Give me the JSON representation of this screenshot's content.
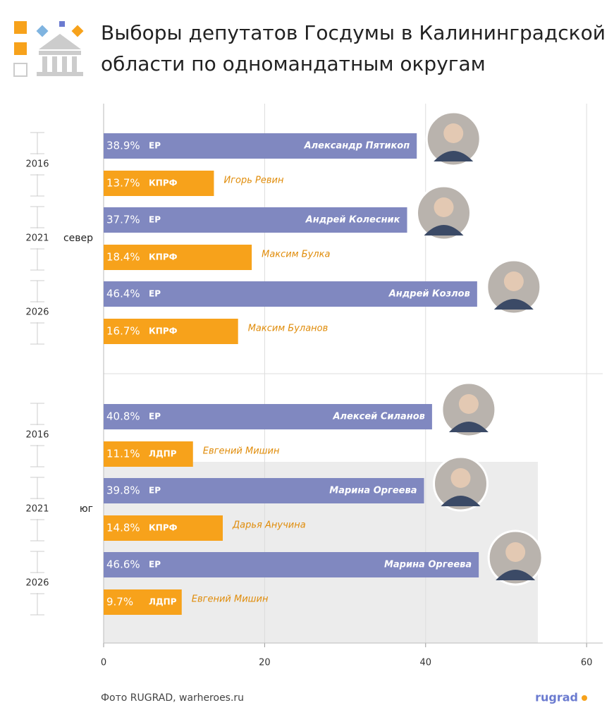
{
  "chart_data": {
    "type": "bar",
    "title": [
      "Выборы депутатов Госдумы в Калининградской",
      "области по одномандатным округам"
    ],
    "orientation": "horizontal",
    "xlim": [
      0,
      62
    ],
    "xticks": [
      0,
      20,
      40,
      60
    ],
    "grid": true,
    "groups": [
      {
        "name": "север",
        "rows": [
          {
            "year": "2016",
            "bars": [
              {
                "value": 38.9,
                "value_label": "38.9%",
                "party": "ЕР",
                "candidate": "Александр Пятикоп",
                "color": "#8088c0"
              },
              {
                "value": 13.7,
                "value_label": "13.7%",
                "party": "КПРФ",
                "candidate": "Игорь Ревин",
                "color": "#f7a21b"
              }
            ]
          },
          {
            "year": "2021",
            "bars": [
              {
                "value": 37.7,
                "value_label": "37.7%",
                "party": "ЕР",
                "candidate": "Андрей Колесник",
                "color": "#8088c0"
              },
              {
                "value": 18.4,
                "value_label": "18.4%",
                "party": "КПРФ",
                "candidate": "Максим Булка",
                "color": "#f7a21b"
              }
            ]
          },
          {
            "year": "2026",
            "bars": [
              {
                "value": 46.4,
                "value_label": "46.4%",
                "party": "ЕР",
                "candidate": "Андрей Козлов",
                "color": "#8088c0"
              },
              {
                "value": 16.7,
                "value_label": "16.7%",
                "party": "КПРФ",
                "candidate": "Максим Буланов",
                "color": "#f7a21b"
              }
            ]
          }
        ]
      },
      {
        "name": "юг",
        "rows": [
          {
            "year": "2016",
            "bars": [
              {
                "value": 40.8,
                "value_label": "40.8%",
                "party": "ЕР",
                "candidate": "Алексей Силанов",
                "color": "#8088c0"
              },
              {
                "value": 11.1,
                "value_label": "11.1%",
                "party": "ЛДПР",
                "candidate": "Евгений Мишин",
                "color": "#f7a21b"
              }
            ]
          },
          {
            "year": "2021",
            "bars": [
              {
                "value": 39.8,
                "value_label": "39.8%",
                "party": "ЕР",
                "candidate": "Марина Оргеева",
                "color": "#8088c0"
              },
              {
                "value": 14.8,
                "value_label": "14.8%",
                "party": "КПРФ",
                "candidate": "Дарья Анучина",
                "color": "#f7a21b"
              }
            ]
          },
          {
            "year": "2026",
            "bars": [
              {
                "value": 46.6,
                "value_label": "46.6%",
                "party": "ЕР",
                "candidate": "Марина Оргеева",
                "color": "#8088c0"
              },
              {
                "value": 9.7,
                "value_label": "9.7%",
                "party": "ЛДПР",
                "candidate": "Евгений Мишин",
                "color": "#f7a21b"
              }
            ]
          }
        ]
      }
    ],
    "source": "Фото RUGRAD, warheroes.ru",
    "logo": "rugrad"
  }
}
